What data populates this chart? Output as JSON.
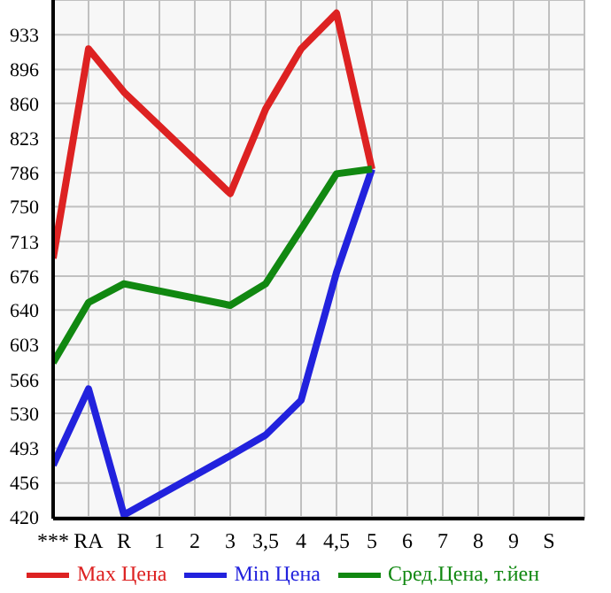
{
  "chart_data": {
    "type": "line",
    "categories": [
      "***",
      "RA",
      "R",
      "1",
      "2",
      "3",
      "3,5",
      "4",
      "4,5",
      "5",
      "6",
      "7",
      "8",
      "9",
      "S"
    ],
    "series": [
      {
        "name": "Max Цена",
        "color": "#dd2222",
        "values": [
          695,
          918,
          872,
          null,
          null,
          764,
          854,
          918,
          956,
          790,
          null,
          null,
          null,
          null,
          null
        ]
      },
      {
        "name": "Min Цена",
        "color": "#2222dd",
        "values": [
          475,
          556,
          422,
          null,
          null,
          485,
          507,
          544,
          680,
          790,
          null,
          null,
          null,
          null,
          null
        ]
      },
      {
        "name": "Сред.Цена, т.йен",
        "color": "#118811",
        "values": [
          584,
          648,
          668,
          null,
          null,
          645,
          668,
          726,
          785,
          790,
          null,
          null,
          null,
          null,
          null
        ]
      }
    ],
    "ylim": [
      418,
      970
    ],
    "yticks": [
      420,
      456,
      493,
      530,
      566,
      603,
      640,
      676,
      713,
      750,
      786,
      823,
      860,
      896,
      933
    ],
    "grid": true,
    "legend": "bottom",
    "marker": "none",
    "line_style": "solid"
  }
}
